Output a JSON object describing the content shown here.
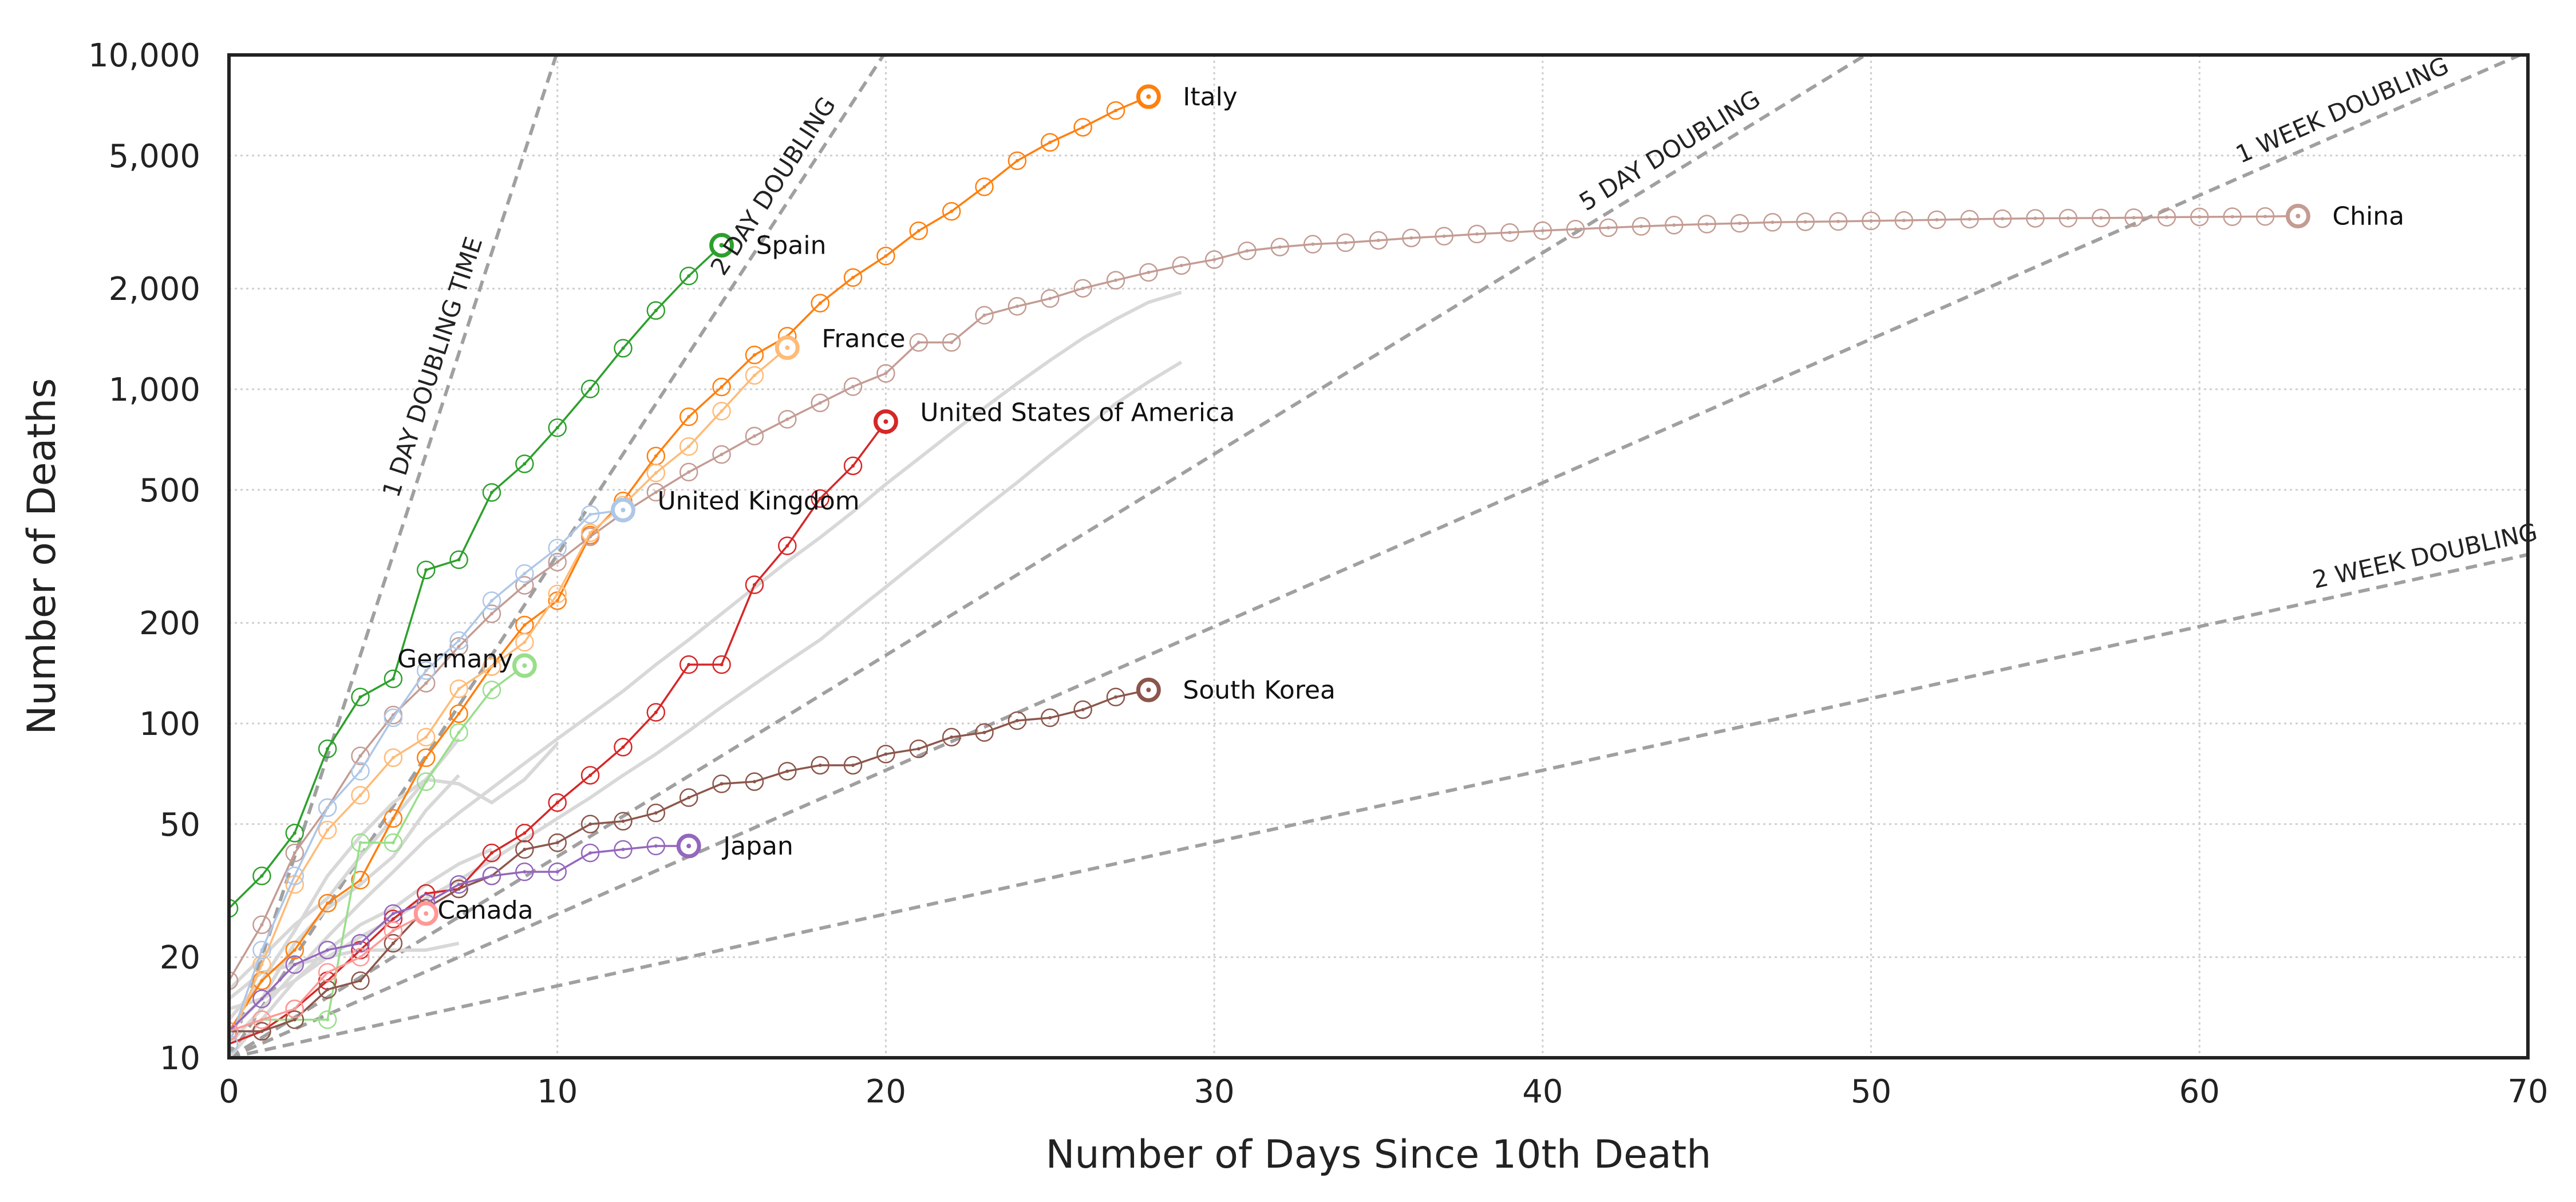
{
  "chart_data": {
    "type": "line",
    "title": "",
    "xlabel": "Number of Days Since 10th Death",
    "ylabel": "Number of Deaths",
    "xlim": [
      0,
      70
    ],
    "ylim": [
      10,
      10000
    ],
    "yscale": "log",
    "grid": true,
    "x_ticks": [
      0,
      10,
      20,
      30,
      40,
      50,
      60,
      70
    ],
    "x_tick_labels": [
      "0",
      "10",
      "20",
      "30",
      "40",
      "50",
      "60",
      "70"
    ],
    "y_ticks": [
      10,
      20,
      50,
      100,
      200,
      500,
      1000,
      2000,
      5000,
      10000
    ],
    "y_tick_labels": [
      "10",
      "20",
      "50",
      "100",
      "200",
      "500",
      "1,000",
      "2,000",
      "5,000",
      "10,000"
    ],
    "reference_lines": [
      {
        "label": "1 DAY DOUBLING TIME",
        "doubling_days": 1
      },
      {
        "label": "2 DAY DOUBLING",
        "doubling_days": 2
      },
      {
        "label": "5 DAY DOUBLING",
        "doubling_days": 5
      },
      {
        "label": "1 WEEK DOUBLING",
        "doubling_days": 7
      },
      {
        "label": "2 WEEK DOUBLING",
        "doubling_days": 14
      }
    ],
    "series": [
      {
        "name": "Italy",
        "color": "#ff7f0e",
        "x": [
          0,
          1,
          2,
          3,
          4,
          5,
          6,
          7,
          8,
          9,
          10,
          11,
          12,
          13,
          14,
          15,
          16,
          17,
          18,
          19,
          20,
          21,
          22,
          23,
          24,
          25,
          26,
          27,
          28
        ],
        "y": [
          12,
          17,
          21,
          29,
          34,
          52,
          79,
          107,
          148,
          197,
          233,
          366,
          463,
          631,
          827,
          1016,
          1266,
          1441,
          1809,
          2158,
          2503,
          2978,
          3405,
          4032,
          4825,
          5476,
          6077,
          6820,
          7503
        ]
      },
      {
        "name": "China",
        "color": "#c49c94",
        "x": [
          0,
          1,
          2,
          3,
          4,
          5,
          6,
          7,
          8,
          9,
          10,
          11,
          12,
          13,
          14,
          15,
          16,
          17,
          18,
          19,
          20,
          21,
          22,
          23,
          24,
          25,
          26,
          27,
          28,
          29,
          30,
          31,
          32,
          33,
          34,
          35,
          36,
          37,
          38,
          39,
          40,
          41,
          42,
          43,
          44,
          45,
          46,
          47,
          48,
          49,
          50,
          51,
          52,
          53,
          54,
          55,
          56,
          57,
          58,
          59,
          60,
          61,
          62,
          63
        ],
        "y": [
          17,
          25,
          41,
          56,
          80,
          106,
          132,
          170,
          213,
          259,
          304,
          362,
          426,
          492,
          565,
          638,
          724,
          813,
          910,
          1018,
          1115,
          1380,
          1380,
          1665,
          1770,
          1868,
          2004,
          2118,
          2236,
          2345,
          2442,
          2594,
          2663,
          2715,
          2744,
          2788,
          2835,
          2870,
          2912,
          2943,
          2981,
          3012,
          3042,
          3070,
          3097,
          3119,
          3136,
          3158,
          3169,
          3176,
          3189,
          3199,
          3213,
          3226,
          3237,
          3245,
          3249,
          3253,
          3259,
          3270,
          3277,
          3281,
          3287,
          3296
        ]
      },
      {
        "name": "Spain",
        "color": "#2ca02c",
        "x": [
          0,
          1,
          2,
          3,
          4,
          5,
          6,
          7,
          8,
          9,
          10,
          11,
          12,
          13,
          14,
          15
        ],
        "y": [
          28,
          35,
          47,
          84,
          120,
          136,
          288,
          309,
          491,
          598,
          767,
          1002,
          1326,
          1720,
          2182,
          2696
        ]
      },
      {
        "name": "France",
        "color": "#ffbb78",
        "x": [
          0,
          1,
          2,
          3,
          4,
          5,
          6,
          7,
          8,
          9,
          10,
          11,
          12,
          13,
          14,
          15,
          16,
          17
        ],
        "y": [
          11,
          19,
          33,
          48,
          61,
          79,
          91,
          127,
          148,
          175,
          244,
          372,
          450,
          562,
          674,
          860,
          1100,
          1331
        ]
      },
      {
        "name": "United States of America",
        "color": "#d62728",
        "x": [
          0,
          1,
          2,
          3,
          4,
          5,
          6,
          7,
          8,
          9,
          10,
          11,
          12,
          13,
          14,
          15,
          16,
          17,
          18,
          19,
          20
        ],
        "y": [
          11,
          12,
          14,
          17,
          21,
          26,
          31,
          32,
          41,
          47,
          58,
          70,
          85,
          108,
          150,
          150,
          260,
          340,
          471,
          590,
          800
        ]
      },
      {
        "name": "United Kingdom",
        "color": "#aec7e8",
        "x": [
          0,
          1,
          2,
          3,
          4,
          5,
          6,
          7,
          8,
          9,
          10,
          11,
          12
        ],
        "y": [
          11,
          21,
          35,
          56,
          72,
          104,
          144,
          177,
          233,
          281,
          335,
          422,
          435
        ]
      },
      {
        "name": "Germany",
        "color": "#98df8a",
        "x": [
          0,
          1,
          2,
          3,
          4,
          5,
          6,
          7,
          8,
          9
        ],
        "y": [
          12,
          13,
          13,
          13,
          44,
          44,
          67,
          94,
          126,
          149
        ]
      },
      {
        "name": "South Korea",
        "color": "#8c564b",
        "x": [
          0,
          1,
          2,
          3,
          4,
          5,
          6,
          7,
          8,
          9,
          10,
          11,
          12,
          13,
          14,
          15,
          16,
          17,
          18,
          19,
          20,
          21,
          22,
          23,
          24,
          25,
          26,
          27,
          28
        ],
        "y": [
          12,
          12,
          13,
          16,
          17,
          22,
          28,
          32,
          35,
          42,
          44,
          50,
          51,
          54,
          60,
          66,
          67,
          72,
          75,
          75,
          81,
          84,
          91,
          94,
          102,
          104,
          110,
          120,
          126
        ]
      },
      {
        "name": "Japan",
        "color": "#9467bd",
        "x": [
          0,
          1,
          2,
          3,
          4,
          5,
          6,
          7,
          8,
          9,
          10,
          11,
          12,
          13,
          14
        ],
        "y": [
          12,
          15,
          19,
          21,
          22,
          27,
          29,
          33,
          35,
          36,
          36,
          41,
          42,
          43,
          43
        ]
      },
      {
        "name": "Canada",
        "color": "#ff9896",
        "x": [
          0,
          1,
          2,
          3,
          4,
          5,
          6
        ],
        "y": [
          12,
          13,
          14,
          18,
          20,
          24,
          27
        ]
      }
    ],
    "background_series": [
      {
        "x": [
          0,
          1,
          2,
          3,
          4,
          5,
          6,
          7,
          8,
          9,
          10,
          11,
          12,
          13,
          14,
          15,
          16,
          17,
          18,
          19,
          20,
          21,
          22,
          23,
          24,
          25,
          26,
          27,
          28,
          29
        ],
        "y": [
          14,
          15,
          17,
          20,
          23,
          26,
          30,
          34,
          39,
          45,
          52,
          60,
          70,
          81,
          95,
          112,
          131,
          153,
          178,
          214,
          256,
          307,
          368,
          441,
          526,
          633,
          757,
          905,
          1052,
          1205
        ]
      },
      {
        "x": [
          0,
          1,
          2,
          3,
          4,
          5,
          6,
          7,
          8,
          9,
          10,
          11,
          12,
          13,
          14,
          15,
          16,
          17,
          18,
          19,
          20,
          21,
          22,
          23,
          24,
          25,
          26,
          27,
          28,
          29
        ],
        "y": [
          11,
          14,
          18,
          23,
          29,
          36,
          45,
          54,
          64,
          76,
          90,
          106,
          125,
          150,
          178,
          213,
          255,
          305,
          360,
          430,
          520,
          620,
          740,
          880,
          1040,
          1220,
          1420,
          1620,
          1820,
          1950
        ]
      },
      {
        "x": [
          0,
          1,
          2,
          3,
          4,
          5,
          6,
          7,
          8,
          9,
          10
        ],
        "y": [
          13,
          17,
          24,
          35,
          46,
          58,
          68,
          66,
          58,
          68,
          87
        ]
      },
      {
        "x": [
          0,
          1,
          2,
          3,
          4,
          5,
          6,
          7,
          8
        ],
        "y": [
          10,
          13,
          17,
          21,
          25,
          28,
          33,
          38,
          42
        ]
      },
      {
        "x": [
          0,
          1,
          2,
          3,
          4,
          5,
          6,
          7
        ],
        "y": [
          12,
          15,
          22,
          28,
          33,
          40,
          55,
          70
        ]
      },
      {
        "x": [
          0,
          1,
          2,
          3,
          4,
          5,
          6,
          7
        ],
        "y": [
          15,
          18,
          19,
          20,
          21,
          21,
          21,
          22
        ]
      },
      {
        "x": [
          0,
          1,
          2,
          3,
          4,
          5,
          6,
          7
        ],
        "y": [
          16,
          20,
          25,
          30,
          40,
          52,
          68,
          90
        ]
      }
    ]
  }
}
